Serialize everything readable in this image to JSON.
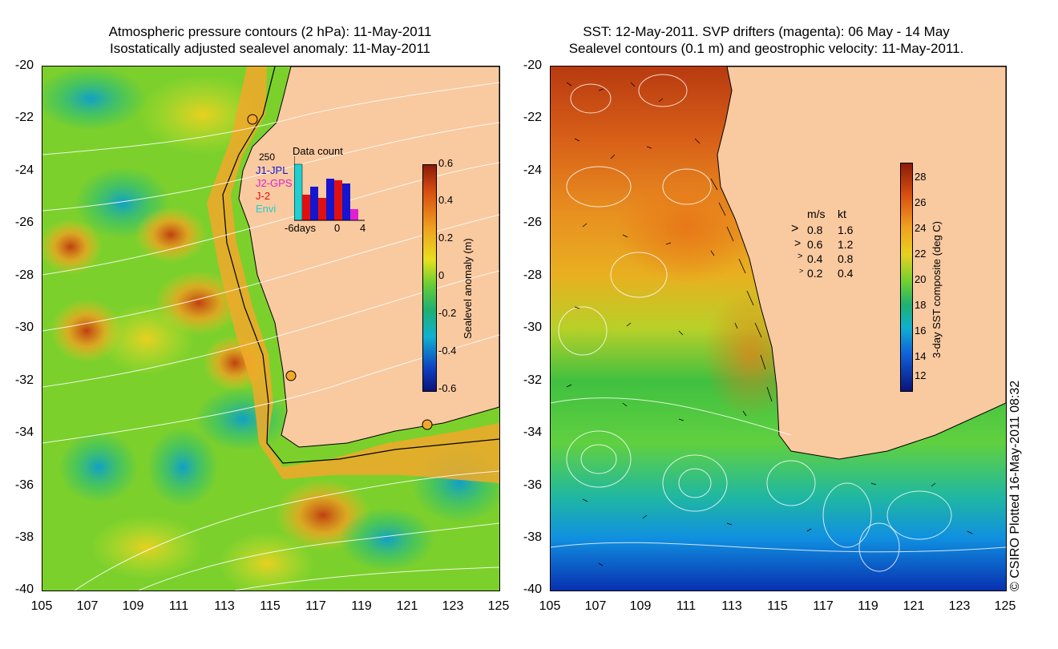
{
  "left_panel": {
    "title_line1": "Atmospheric pressure contours (2 hPa): 11-May-2011",
    "title_line2": "Isostatically adjusted sealevel anomaly: 11-May-2011",
    "lat_ticks": [
      "-20",
      "-22",
      "-24",
      "-26",
      "-28",
      "-30",
      "-32",
      "-34",
      "-36",
      "-38",
      "-40"
    ],
    "lon_ticks": [
      "105",
      "107",
      "109",
      "111",
      "113",
      "115",
      "117",
      "119",
      "121",
      "123",
      "125"
    ],
    "colorbar_label": "Sealevel anomaly (m)",
    "colorbar_ticks": [
      "0.6",
      "0.4",
      "0.2",
      "0",
      "-0.2",
      "-0.4",
      "-0.6"
    ],
    "inset": {
      "title": "Data count",
      "max_label": "250",
      "legend": [
        {
          "label": "J1-JPL",
          "color": "#1515d0"
        },
        {
          "label": "J2-GPS",
          "color": "#e020d0"
        },
        {
          "label": "J-2",
          "color": "#e01010"
        },
        {
          "label": "Envi",
          "color": "#20d0d0"
        }
      ],
      "axis_labels": [
        "-6days",
        "0",
        "4"
      ]
    }
  },
  "right_panel": {
    "title_line1": "SST: 12-May-2011. SVP drifters (magenta): 06 May - 14 May",
    "title_line2": "Sealevel contours (0.1 m) and geostrophic velocity: 11-May-2011.",
    "lat_ticks": [
      "-20",
      "-22",
      "-24",
      "-26",
      "-28",
      "-30",
      "-32",
      "-34",
      "-36",
      "-38",
      "-40"
    ],
    "lon_ticks": [
      "105",
      "107",
      "109",
      "111",
      "113",
      "115",
      "117",
      "119",
      "121",
      "123",
      "125"
    ],
    "colorbar_label": "3-day SST composite (deg C)",
    "colorbar_ticks": [
      "28",
      "26",
      "24",
      "22",
      "20",
      "18",
      "16",
      "14",
      "12"
    ],
    "speed_legend": {
      "header_ms": "m/s",
      "header_kt": "kt",
      "rows": [
        {
          "ms": "0.8",
          "kt": "1.6"
        },
        {
          "ms": "0.6",
          "kt": "1.2"
        },
        {
          "ms": "0.4",
          "kt": "0.8"
        },
        {
          "ms": "0.2",
          "kt": "0.4"
        }
      ]
    }
  },
  "credit": "© CSIRO Plotted 16-May-2011 08:32",
  "colors": {
    "land": "#f9c9a0",
    "coast": "#000000"
  }
}
